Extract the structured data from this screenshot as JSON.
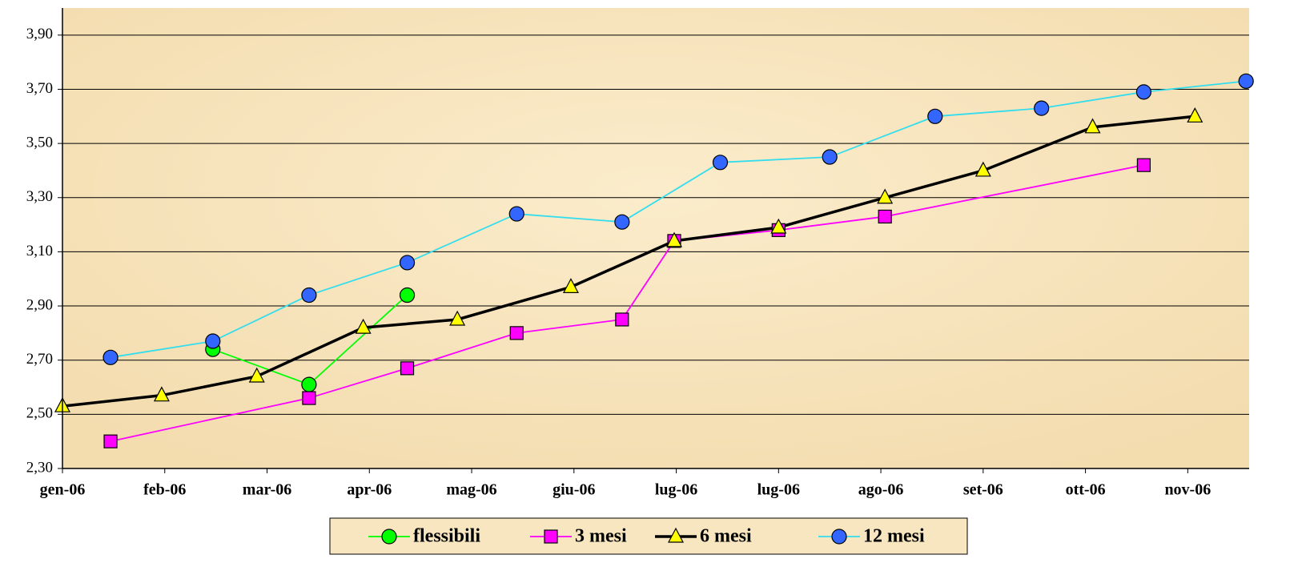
{
  "chart_data": {
    "type": "line",
    "xlim": [
      0,
      11.6
    ],
    "ylim": [
      2.3,
      4.0
    ],
    "xticks": [
      {
        "value": 0,
        "label": "gen-06"
      },
      {
        "value": 1,
        "label": "feb-06"
      },
      {
        "value": 2,
        "label": "mar-06"
      },
      {
        "value": 3,
        "label": "apr-06"
      },
      {
        "value": 4,
        "label": "mag-06"
      },
      {
        "value": 5,
        "label": "giu-06"
      },
      {
        "value": 6,
        "label": "lug-06"
      },
      {
        "value": 7,
        "label": "lug-06"
      },
      {
        "value": 8,
        "label": "ago-06"
      },
      {
        "value": 9,
        "label": "set-06"
      },
      {
        "value": 10,
        "label": "ott-06"
      },
      {
        "value": 11,
        "label": "nov-06"
      }
    ],
    "yticks": [
      {
        "value": 2.3,
        "label": "2,30"
      },
      {
        "value": 2.5,
        "label": "2,50"
      },
      {
        "value": 2.7,
        "label": "2,70"
      },
      {
        "value": 2.9,
        "label": "2,90"
      },
      {
        "value": 3.1,
        "label": "3,10"
      },
      {
        "value": 3.3,
        "label": "3,30"
      },
      {
        "value": 3.5,
        "label": "3,50"
      },
      {
        "value": 3.7,
        "label": "3,70"
      },
      {
        "value": 3.9,
        "label": "3,90"
      }
    ],
    "grid": true,
    "legend": "bottom",
    "series": [
      {
        "name": "flessibili",
        "color": "#00ff00",
        "marker": "circle",
        "x": [
          1.47,
          2.41,
          3.37
        ],
        "values": [
          2.74,
          2.61,
          2.94
        ]
      },
      {
        "name": "3 mesi",
        "color": "#ff00ff",
        "marker": "square",
        "x": [
          0.47,
          2.41,
          3.37,
          4.44,
          5.47,
          5.98,
          7.0,
          8.04,
          10.57
        ],
        "values": [
          2.4,
          2.56,
          2.67,
          2.8,
          2.85,
          3.14,
          3.18,
          3.23,
          3.42
        ]
      },
      {
        "name": "6 mesi",
        "color": "#000000",
        "marker": "triangle",
        "x": [
          0,
          0.97,
          1.9,
          2.94,
          3.86,
          4.97,
          5.98,
          7.0,
          8.04,
          9.0,
          10.07,
          11.07
        ],
        "values": [
          2.53,
          2.57,
          2.64,
          2.82,
          2.85,
          2.97,
          3.14,
          3.19,
          3.3,
          3.4,
          3.56,
          3.6
        ]
      },
      {
        "name": "12 mesi",
        "color": "#33ddee",
        "marker": "circle",
        "x": [
          0.47,
          1.47,
          2.41,
          3.37,
          4.44,
          5.47,
          6.43,
          7.5,
          8.53,
          9.57,
          10.57,
          11.57
        ],
        "values": [
          2.71,
          2.77,
          2.94,
          3.06,
          3.24,
          3.21,
          3.43,
          3.45,
          3.6,
          3.63,
          3.69,
          3.73
        ]
      }
    ]
  }
}
